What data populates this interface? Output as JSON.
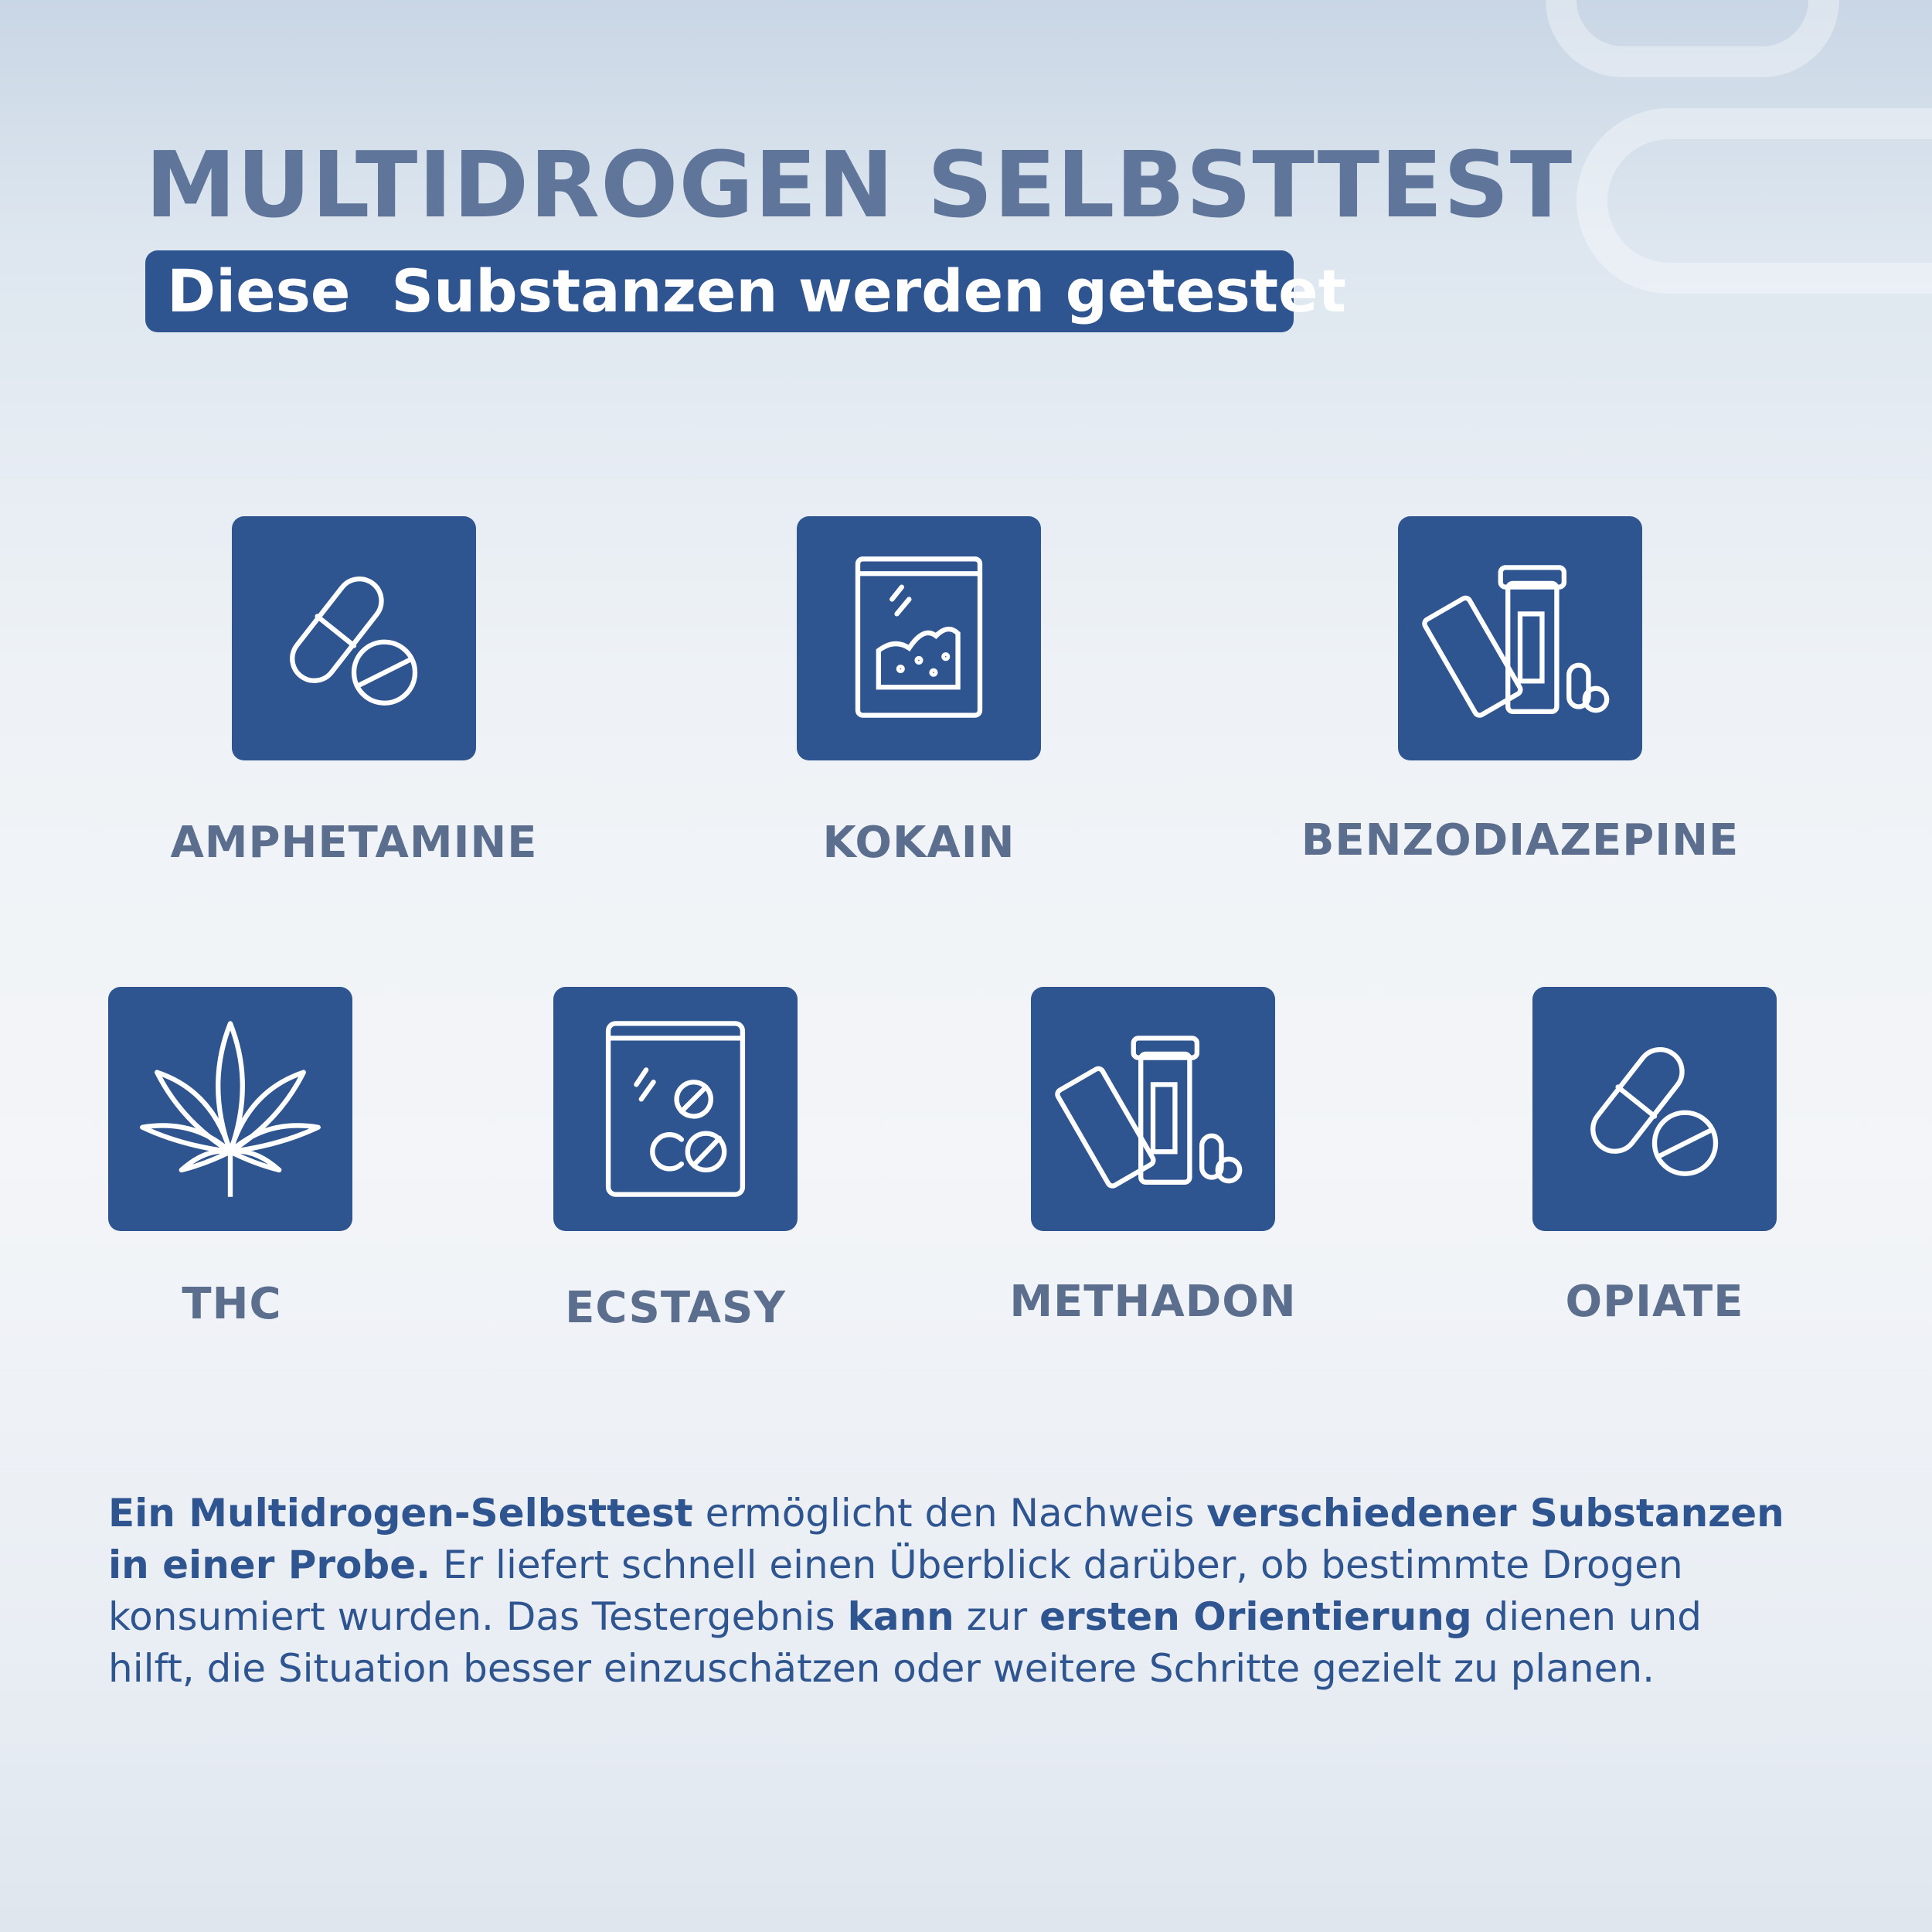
{
  "header": {
    "title": "MULTIDROGEN SELBSTTEST",
    "subtitle": "Diese  Substanzen werden getestet"
  },
  "colors": {
    "accent": "#2f5591",
    "title": "#5f7599",
    "label": "#5b6e8e"
  },
  "substances": [
    {
      "label": "AMPHETAMINE",
      "icon": "capsule-pill-icon"
    },
    {
      "label": "KOKAIN",
      "icon": "powder-bag-icon"
    },
    {
      "label": "BENZODIAZEPINE",
      "icon": "pill-bottle-blister-icon"
    },
    {
      "label": "THC",
      "icon": "cannabis-leaf-icon"
    },
    {
      "label": "ECSTASY",
      "icon": "pill-bag-icon"
    },
    {
      "label": "METHADON",
      "icon": "pill-bottle-blister-icon"
    },
    {
      "label": "OPIATE",
      "icon": "capsule-pill-icon"
    }
  ],
  "description": {
    "segments": [
      {
        "text": "Ein Multidrogen-Selbsttest",
        "bold": true
      },
      {
        "text": " ermöglicht den Nachweis ",
        "bold": false
      },
      {
        "text": "verschiedener Subs­tanzen in einer Probe.",
        "bold": true
      },
      {
        "text": " Er liefert schnell einen Überblick darüber, ob be­stimmte Drogen konsumiert wurden. Das Testergebnis ",
        "bold": false
      },
      {
        "text": "kann",
        "bold": true
      },
      {
        "text": " zur ",
        "bold": false
      },
      {
        "text": "ersten Orientierung",
        "bold": true
      },
      {
        "text": " dienen und hilft, die Situation besser einzuschätzen oder wei­tere Schritte gezielt zu planen.",
        "bold": false
      }
    ]
  }
}
